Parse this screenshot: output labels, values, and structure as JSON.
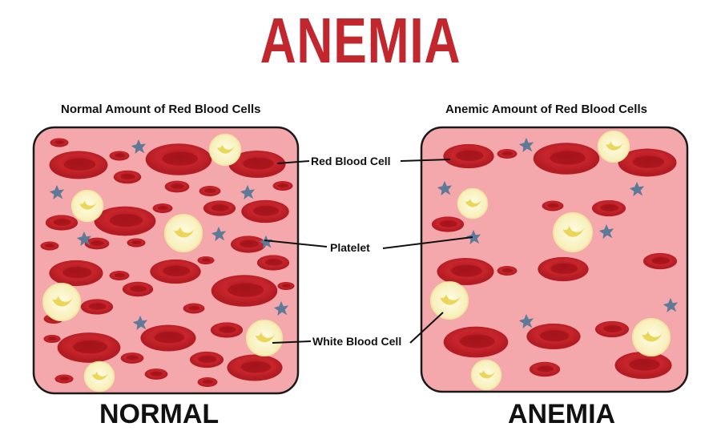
{
  "title": "ANEMIA",
  "left_panel": {
    "heading": "Normal Amount of Red Blood Cells",
    "label": "NORMAL"
  },
  "right_panel": {
    "heading": "Anemic Amount of Red Blood Cells",
    "label": "ANEMIA"
  },
  "callouts": {
    "red_blood_cell": "Red Blood Cell",
    "platelet": "Platelet",
    "white_blood_cell": "White Blood Cell"
  },
  "colors": {
    "title": "#c1272d",
    "panel_background": "#f4a8ab",
    "red_cell": "#c8252c",
    "white_cell": "#f9f3c0",
    "platelet": "#5f7a99"
  }
}
